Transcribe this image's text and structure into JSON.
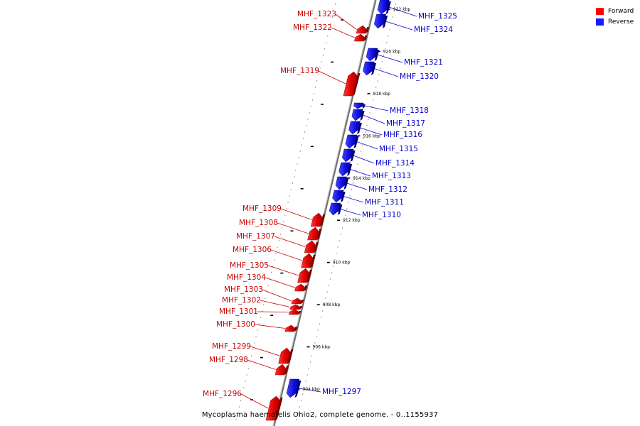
{
  "legend": {
    "forward_label": "Forward",
    "reverse_label": "Reverse",
    "forward_color": "#ff0000",
    "reverse_color": "#1a1aff"
  },
  "caption": "Mycoplasma haemofelis Ohio2, complete genome. - 0..1155937",
  "axis": {
    "unit": "kbp",
    "ticks": [
      {
        "kbp": 904,
        "label": "904 kbp"
      },
      {
        "kbp": 906,
        "label": "906 kbp"
      },
      {
        "kbp": 908,
        "label": "908 kbp"
      },
      {
        "kbp": 910,
        "label": "910 kbp"
      },
      {
        "kbp": 912,
        "label": "912 kbp"
      },
      {
        "kbp": 914,
        "label": "914 kbp"
      },
      {
        "kbp": 916,
        "label": "916 kbp"
      },
      {
        "kbp": 918,
        "label": "918 kbp"
      },
      {
        "kbp": 920,
        "label": "920 kbp"
      },
      {
        "kbp": 922,
        "label": "922 kbp"
      }
    ]
  },
  "genes": [
    {
      "id": "MHF_1296",
      "strand": "forward"
    },
    {
      "id": "MHF_1297",
      "strand": "reverse"
    },
    {
      "id": "MHF_1298",
      "strand": "forward"
    },
    {
      "id": "MHF_1299",
      "strand": "forward"
    },
    {
      "id": "MHF_1300",
      "strand": "forward"
    },
    {
      "id": "MHF_1301",
      "strand": "forward"
    },
    {
      "id": "MHF_1302",
      "strand": "forward"
    },
    {
      "id": "MHF_1303",
      "strand": "forward"
    },
    {
      "id": "MHF_1304",
      "strand": "forward"
    },
    {
      "id": "MHF_1305",
      "strand": "forward"
    },
    {
      "id": "MHF_1306",
      "strand": "forward"
    },
    {
      "id": "MHF_1307",
      "strand": "forward"
    },
    {
      "id": "MHF_1308",
      "strand": "forward"
    },
    {
      "id": "MHF_1309",
      "strand": "forward"
    },
    {
      "id": "MHF_1310",
      "strand": "reverse"
    },
    {
      "id": "MHF_1311",
      "strand": "reverse"
    },
    {
      "id": "MHF_1312",
      "strand": "reverse"
    },
    {
      "id": "MHF_1313",
      "strand": "reverse"
    },
    {
      "id": "MHF_1314",
      "strand": "reverse"
    },
    {
      "id": "MHF_1315",
      "strand": "reverse"
    },
    {
      "id": "MHF_1316",
      "strand": "reverse"
    },
    {
      "id": "MHF_1317",
      "strand": "reverse"
    },
    {
      "id": "MHF_1318",
      "strand": "reverse"
    },
    {
      "id": "MHF_1319",
      "strand": "forward"
    },
    {
      "id": "MHF_1320",
      "strand": "reverse"
    },
    {
      "id": "MHF_1321",
      "strand": "reverse"
    },
    {
      "id": "MHF_1322",
      "strand": "forward"
    },
    {
      "id": "MHF_1323",
      "strand": "forward"
    },
    {
      "id": "MHF_1324",
      "strand": "reverse"
    },
    {
      "id": "MHF_1325",
      "strand": "reverse"
    }
  ]
}
